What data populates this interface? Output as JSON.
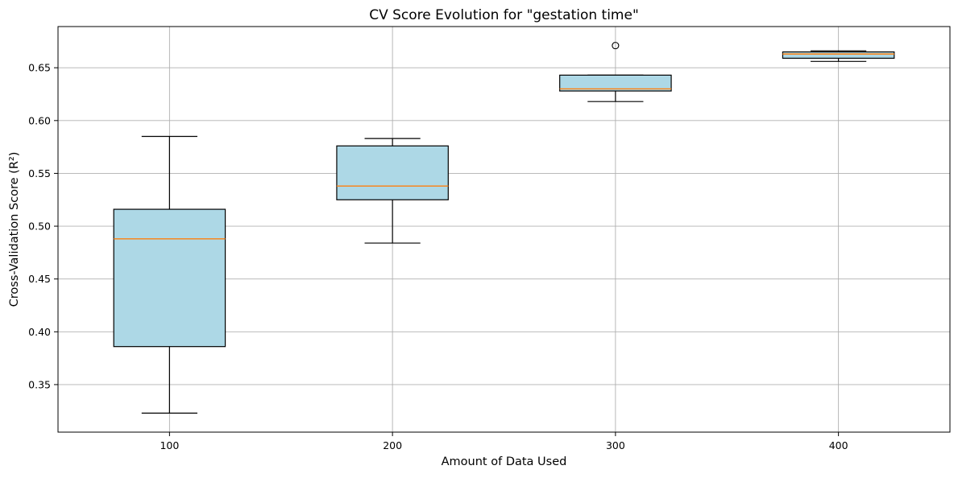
{
  "chart_data": {
    "type": "box",
    "title": "CV Score Evolution for \"gestation time\"",
    "xlabel": "Amount of Data Used",
    "ylabel": "Cross-Validation Score (R²)",
    "categories": [
      "100",
      "200",
      "300",
      "400"
    ],
    "ylim": [
      0.305,
      0.689
    ],
    "yticks": [
      0.35,
      0.4,
      0.45,
      0.5,
      0.55,
      0.6,
      0.65
    ],
    "ytick_labels": [
      "0.35",
      "0.40",
      "0.45",
      "0.50",
      "0.55",
      "0.60",
      "0.65"
    ],
    "grid": true,
    "boxes": [
      {
        "category": "100",
        "whisker_low": 0.323,
        "q1": 0.386,
        "median": 0.488,
        "q3": 0.516,
        "whisker_high": 0.585,
        "outliers": []
      },
      {
        "category": "200",
        "whisker_low": 0.484,
        "q1": 0.525,
        "median": 0.538,
        "q3": 0.576,
        "whisker_high": 0.583,
        "outliers": []
      },
      {
        "category": "300",
        "whisker_low": 0.618,
        "q1": 0.628,
        "median": 0.63,
        "q3": 0.643,
        "whisker_high": 0.643,
        "outliers": [
          0.671
        ]
      },
      {
        "category": "400",
        "whisker_low": 0.656,
        "q1": 0.659,
        "median": 0.663,
        "q3": 0.665,
        "whisker_high": 0.666,
        "outliers": []
      }
    ],
    "colors": {
      "box_fill": "#add8e6",
      "box_edge": "#000000",
      "median": "#ff7f0e",
      "grid": "#b0b0b0"
    }
  }
}
